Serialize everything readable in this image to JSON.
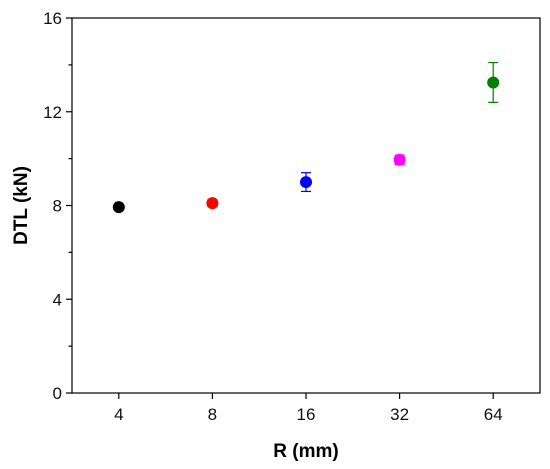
{
  "chart_data": {
    "type": "scatter",
    "title": "",
    "xlabel": "R (mm)",
    "ylabel": "DTL (kN)",
    "x_scale": "log2",
    "x": [
      4,
      8,
      16,
      32,
      64
    ],
    "x_tick_labels": [
      "4",
      "8",
      "16",
      "32",
      "64"
    ],
    "y_ticks": [
      0,
      4,
      8,
      12,
      16
    ],
    "y_tick_labels": [
      "0",
      "4",
      "8",
      "12",
      "16"
    ],
    "y_minor_ticks": [
      2,
      6,
      10,
      14
    ],
    "ylim": [
      0,
      16
    ],
    "grid": false,
    "legend": "none",
    "series": [
      {
        "x": 4,
        "y": 7.93,
        "err": 0.1,
        "color": "#000000"
      },
      {
        "x": 8,
        "y": 8.1,
        "err": 0.15,
        "color": "#ff0000"
      },
      {
        "x": 16,
        "y": 9.0,
        "err": 0.4,
        "color": "#0000ff"
      },
      {
        "x": 32,
        "y": 9.95,
        "err": 0.2,
        "color": "#ff00ff"
      },
      {
        "x": 64,
        "y": 13.25,
        "err": 0.85,
        "color": "#008000"
      }
    ]
  }
}
